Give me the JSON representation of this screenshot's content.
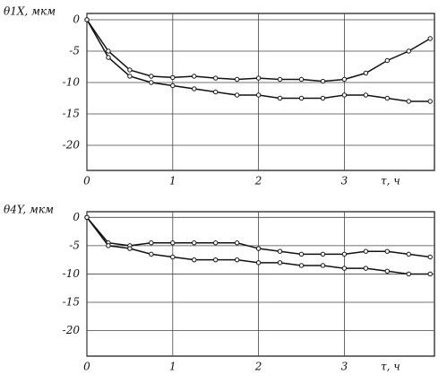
{
  "chart_data": [
    {
      "type": "line",
      "ylabel": "θ1X, мкм",
      "xlabel": "τ, ч",
      "x": [
        0,
        0.25,
        0.5,
        0.75,
        1,
        1.25,
        1.5,
        1.75,
        2,
        2.25,
        2.5,
        2.75,
        3,
        3.25,
        3.5,
        3.75,
        4
      ],
      "series": [
        {
          "color": "#111111",
          "values": [
            0,
            -5,
            -8,
            -9,
            -9.2,
            -9,
            -9.3,
            -9.5,
            -9.3,
            -9.5,
            -9.5,
            -9.8,
            -9.5,
            -8.5,
            -6.5,
            -5,
            -3
          ]
        },
        {
          "color": "#111111",
          "values": [
            0,
            -6,
            -9,
            -10,
            -10.5,
            -11,
            -11.5,
            -12,
            -12,
            -12.5,
            -12.5,
            -12.5,
            -12,
            -12,
            -12.5,
            -13,
            -13
          ]
        }
      ],
      "xlim": [
        0,
        4.05
      ],
      "xticks": [
        0,
        1,
        2,
        3
      ],
      "ylim": [
        -24,
        1
      ],
      "yticks": [
        0,
        -5,
        -10,
        -15,
        -20
      ],
      "grid": true
    },
    {
      "type": "line",
      "ylabel": "θ4Y, мкм",
      "xlabel": "τ, ч",
      "x": [
        0,
        0.25,
        0.5,
        0.75,
        1,
        1.25,
        1.5,
        1.75,
        2,
        2.25,
        2.5,
        2.75,
        3,
        3.25,
        3.5,
        3.75,
        4
      ],
      "series": [
        {
          "color": "#111111",
          "values": [
            0,
            -4.5,
            -5,
            -4.5,
            -4.5,
            -4.5,
            -4.5,
            -4.5,
            -5.5,
            -6,
            -6.5,
            -6.5,
            -6.5,
            -6,
            -6,
            -6.5,
            -7
          ]
        },
        {
          "color": "#111111",
          "values": [
            0,
            -5,
            -5.5,
            -6.5,
            -7,
            -7.5,
            -7.5,
            -7.5,
            -8,
            -8,
            -8.5,
            -8.5,
            -9,
            -9,
            -9.5,
            -10,
            -10
          ]
        }
      ],
      "xlim": [
        0,
        4.05
      ],
      "xticks": [
        0,
        1,
        2,
        3
      ],
      "ylim": [
        -24.5,
        1
      ],
      "yticks": [
        0,
        -5,
        -10,
        -15,
        -20
      ],
      "grid": true
    }
  ]
}
